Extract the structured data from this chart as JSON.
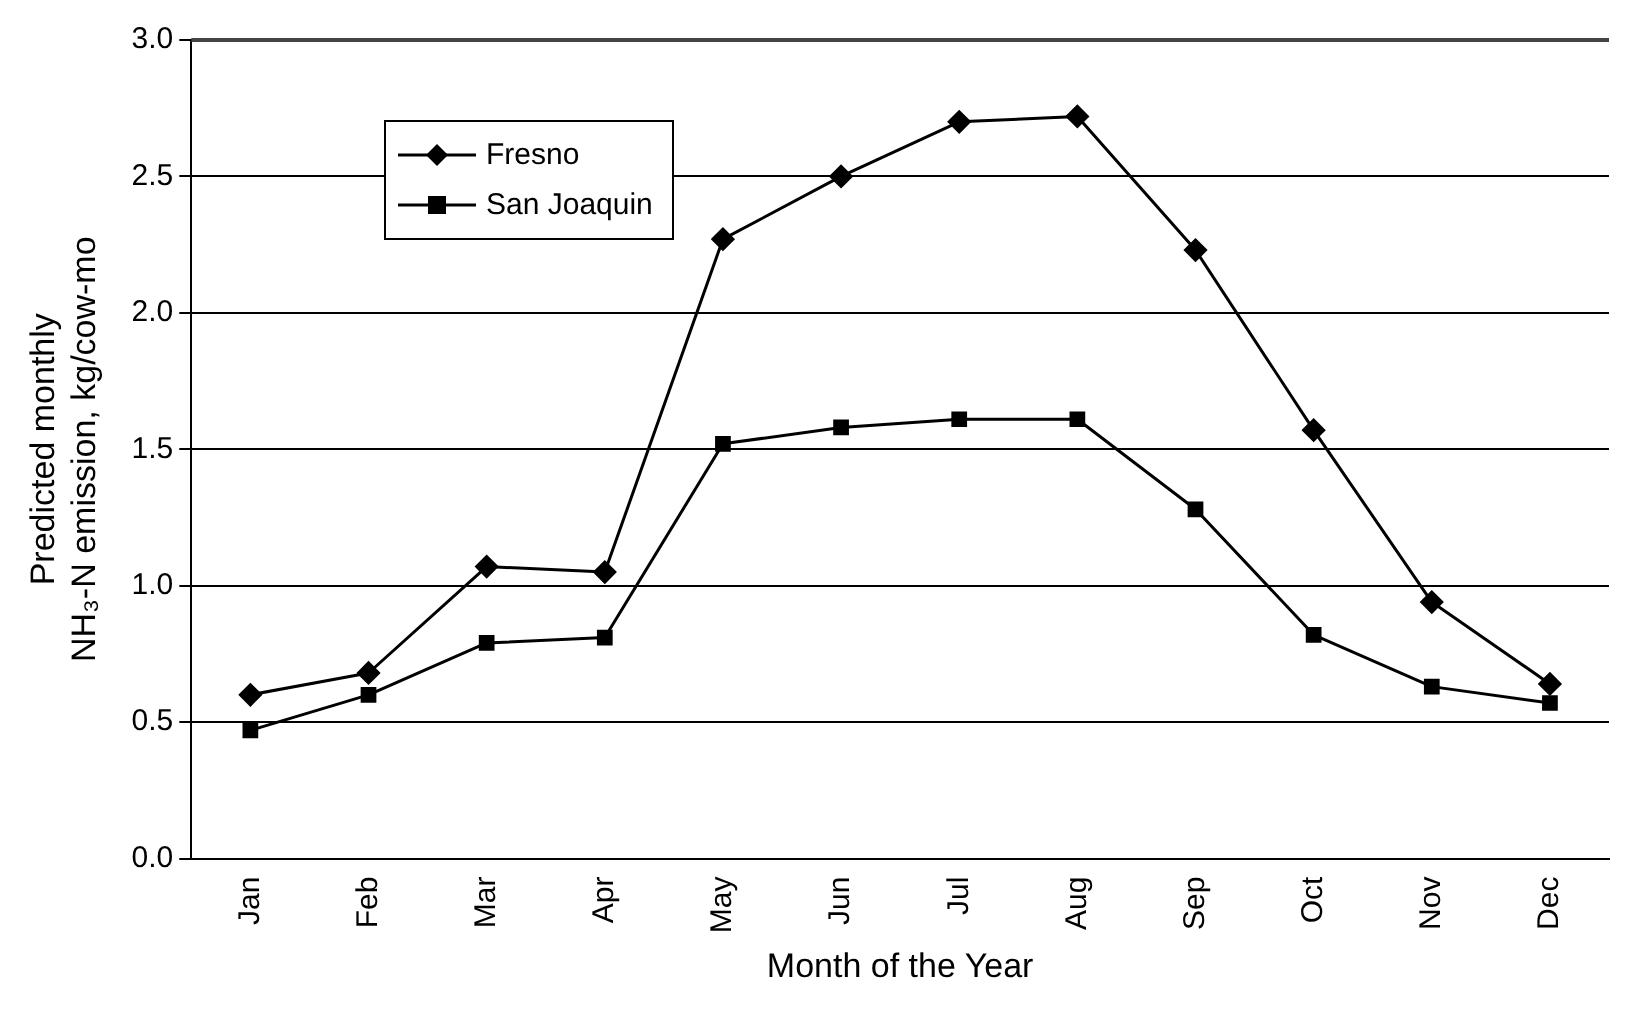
{
  "chart_data": {
    "type": "line",
    "xlabel": "Month of the Year",
    "ylabel": "Predicted monthly\nNH₃-N emission, kg/cow-mo",
    "categories": [
      "Jan",
      "Feb",
      "Mar",
      "Apr",
      "May",
      "Jun",
      "Jul",
      "Aug",
      "Sep",
      "Oct",
      "Nov",
      "Dec"
    ],
    "series": [
      {
        "name": "Fresno",
        "color": "#000000",
        "marker": "diamond",
        "values": [
          0.6,
          0.68,
          1.07,
          1.05,
          2.27,
          2.5,
          2.7,
          2.72,
          2.23,
          1.57,
          0.94,
          0.64
        ]
      },
      {
        "name": "San Joaquin",
        "color": "#000000",
        "marker": "square",
        "values": [
          0.47,
          0.6,
          0.79,
          0.81,
          1.52,
          1.58,
          1.61,
          1.61,
          1.28,
          0.82,
          0.63,
          0.57
        ]
      }
    ],
    "ylim": [
      0,
      3
    ],
    "yticks": [
      {
        "value": 0,
        "label": "0.0"
      },
      0.5,
      {
        "value": 1,
        "label": "1.0"
      },
      1.5,
      {
        "value": 2,
        "label": "2.0"
      },
      2.5,
      {
        "value": 3,
        "label": "3.0"
      }
    ],
    "grid": "y",
    "legend": "top left",
    "line_style": "solid"
  }
}
